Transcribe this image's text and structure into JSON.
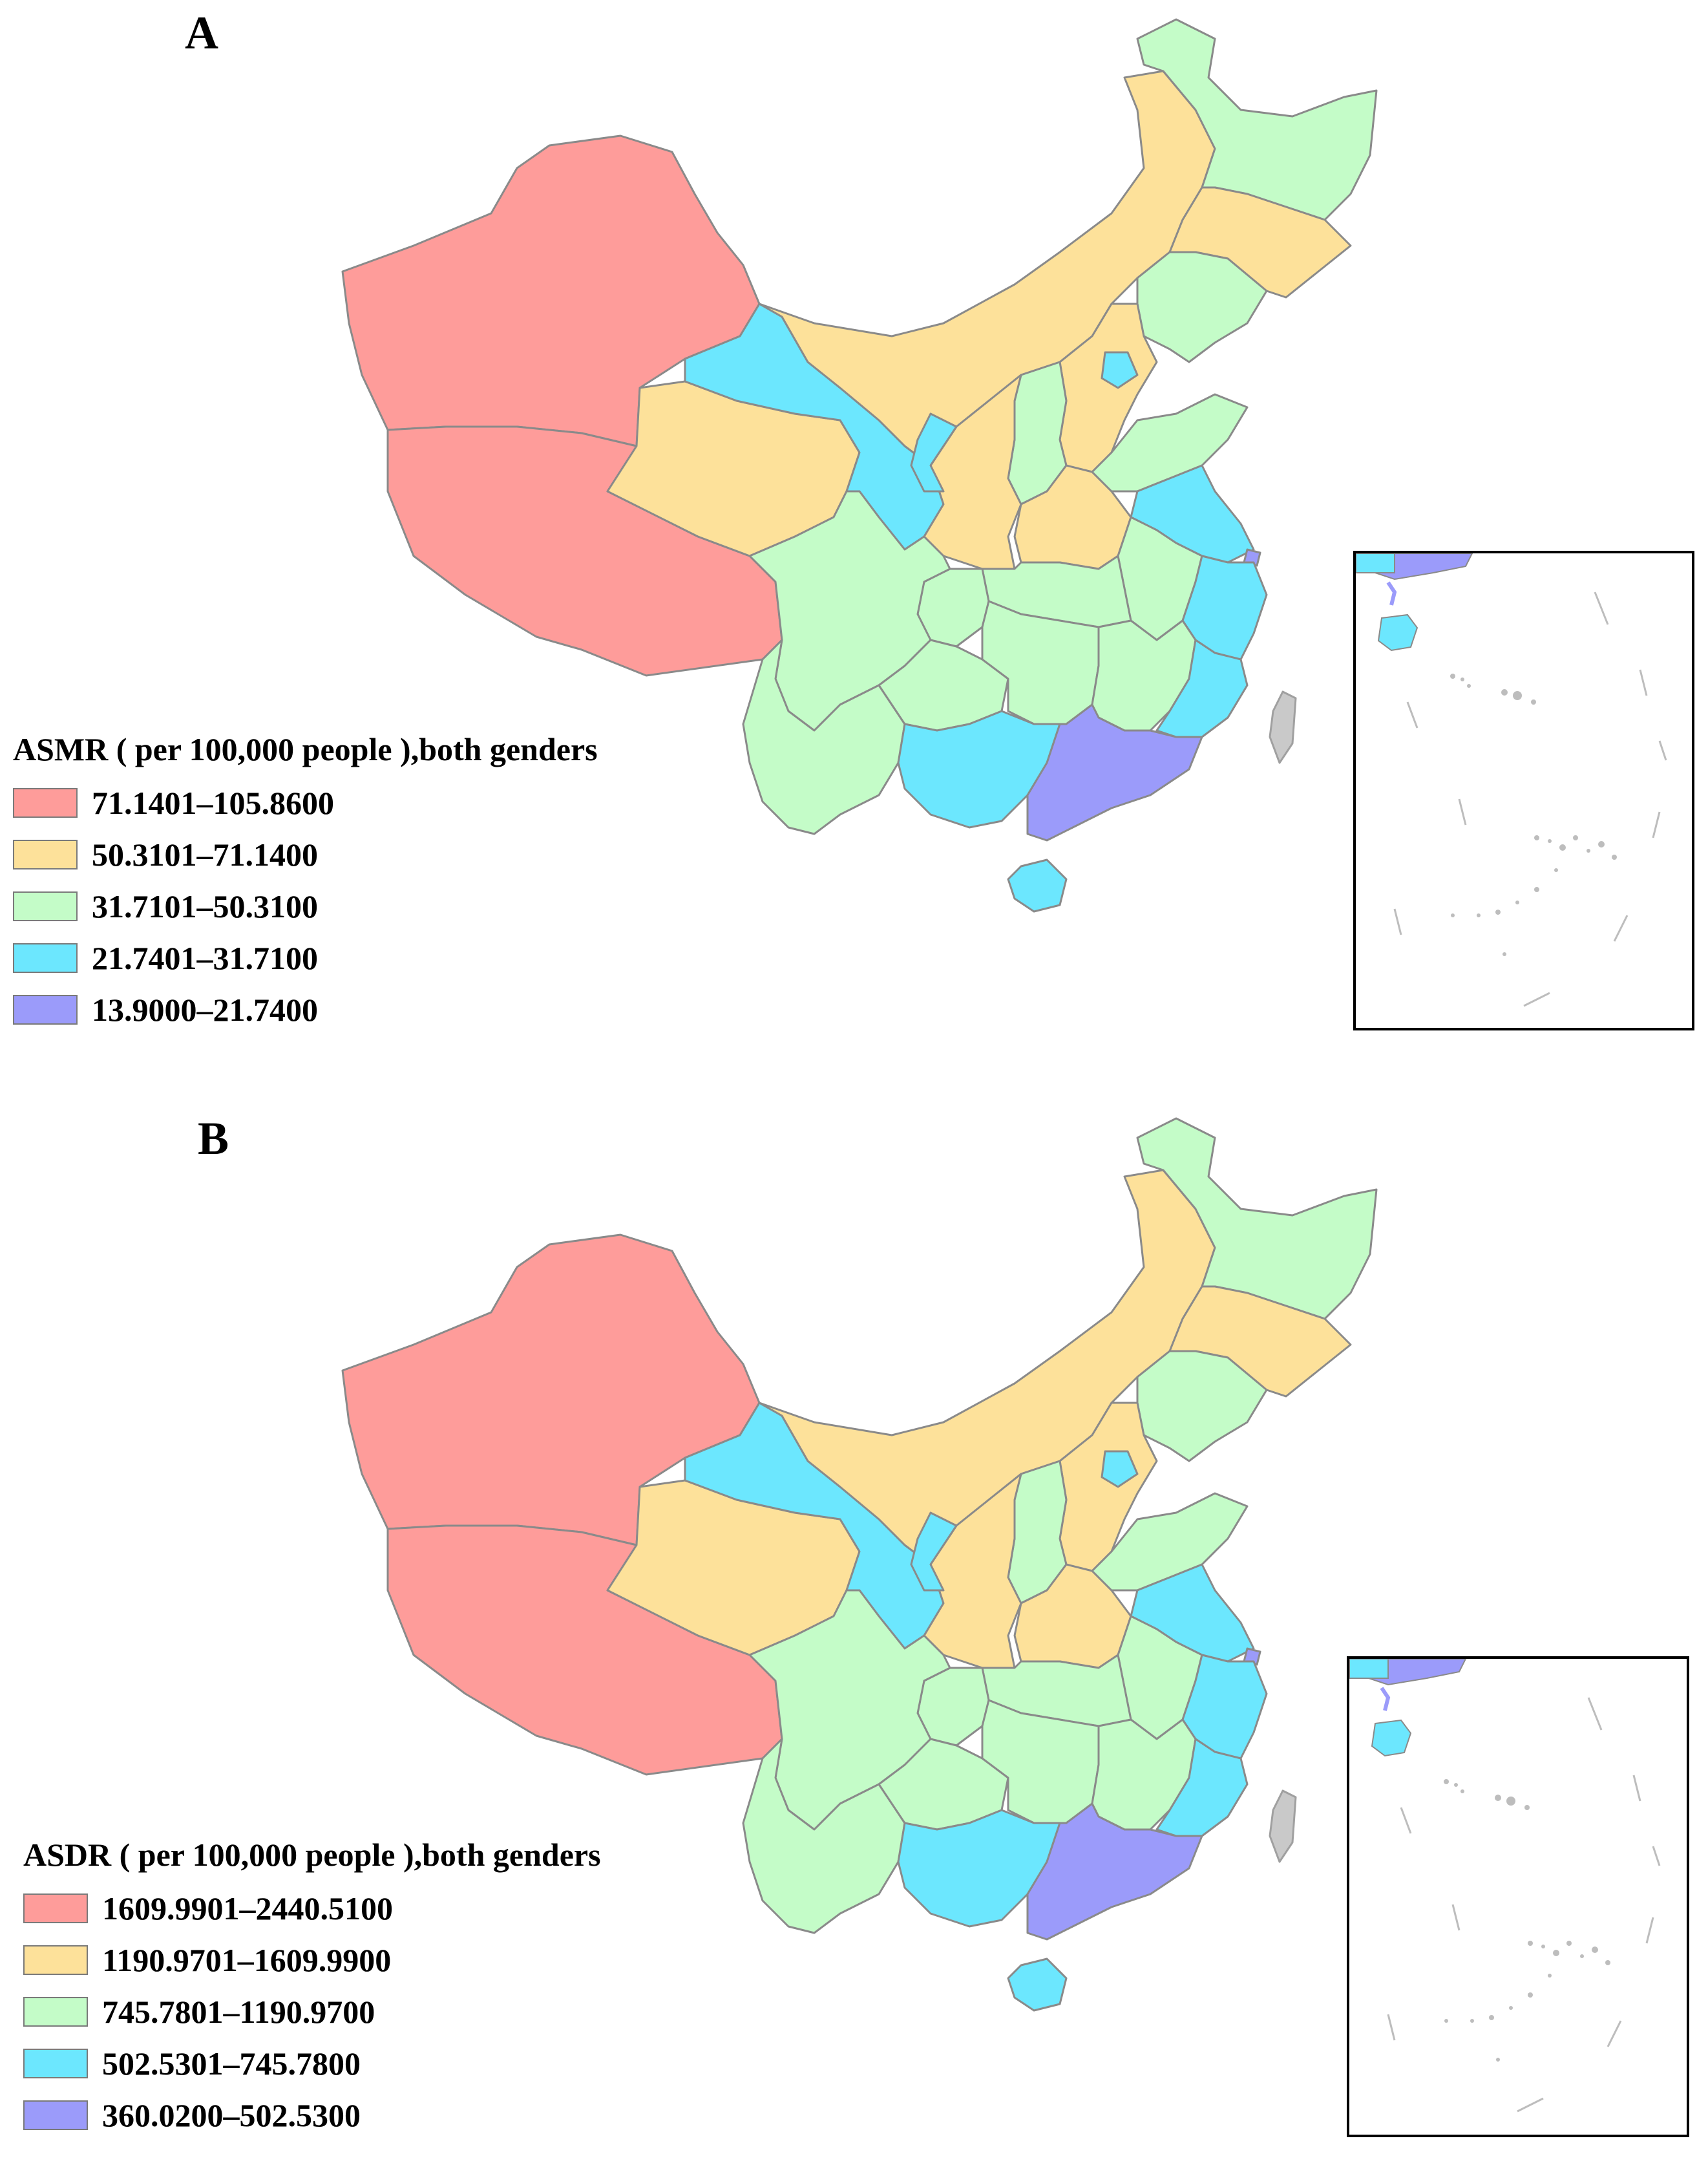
{
  "panels": [
    {
      "id": "A",
      "letter": "A",
      "legend_title": "ASMR ( per 100,000 people ),both genders",
      "legend": [
        {
          "label": "71.1401–105.8600",
          "color": "#fe9c9a"
        },
        {
          "label": "50.3101–71.1400",
          "color": "#fde19a"
        },
        {
          "label": "31.7101–50.3100",
          "color": "#c4fcc8"
        },
        {
          "label": "21.7401–31.7100",
          "color": "#6ce7fe"
        },
        {
          "label": "13.9000–21.7400",
          "color": "#9b9bfa"
        }
      ]
    },
    {
      "id": "B",
      "letter": "B",
      "legend_title": "ASDR ( per 100,000 people ),both genders",
      "legend": [
        {
          "label": "1609.9901–2440.5100",
          "color": "#fe9c9a"
        },
        {
          "label": "1190.9701–1609.9900",
          "color": "#fde19a"
        },
        {
          "label": "745.7801–1190.9700",
          "color": "#c4fcc8"
        },
        {
          "label": "502.5301–745.7800",
          "color": "#6ce7fe"
        },
        {
          "label": "360.0200–502.5300",
          "color": "#9b9bfa"
        }
      ]
    }
  ],
  "region_colors": {
    "Xinjiang": "#fe9c9a",
    "Tibet": "#fe9c9a",
    "Qinghai": "#fde19a",
    "Inner Mongolia": "#fde19a",
    "Jilin": "#fde19a",
    "Shaanxi": "#fde19a",
    "Hebei": "#fde19a",
    "Henan": "#fde19a",
    "Heilongjiang": "#c4fcc8",
    "Liaoning": "#c4fcc8",
    "Shanxi": "#c4fcc8",
    "Shandong": "#c4fcc8",
    "Sichuan": "#c4fcc8",
    "Yunnan": "#c4fcc8",
    "Guizhou": "#c4fcc8",
    "Hunan": "#c4fcc8",
    "Hubei": "#c4fcc8",
    "Jiangxi": "#c4fcc8",
    "Anhui": "#c4fcc8",
    "Chongqing": "#c4fcc8",
    "Gansu": "#6ce7fe",
    "Ningxia": "#6ce7fe",
    "Beijing": "#6ce7fe",
    "Jiangsu": "#6ce7fe",
    "Zhejiang": "#6ce7fe",
    "Fujian": "#6ce7fe",
    "Guangxi": "#6ce7fe",
    "Hainan": "#6ce7fe",
    "Guangdong": "#9b9bfa",
    "Shanghai": "#9b9bfa"
  }
}
